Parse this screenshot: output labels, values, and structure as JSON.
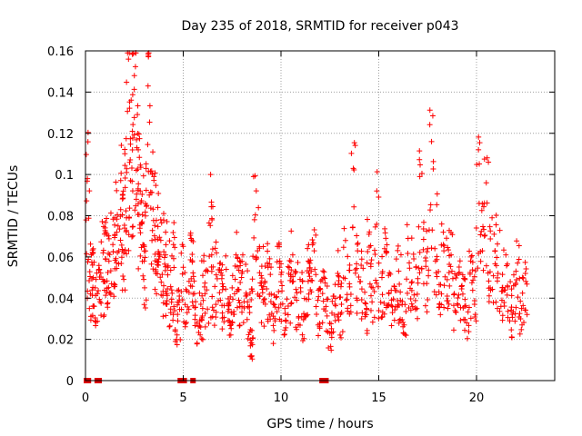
{
  "chart_data": {
    "type": "scatter",
    "title": "Day 235 of 2018, SRMTID for receiver p043",
    "xlabel": "GPS time / hours",
    "ylabel": "SRMTID / TECUs",
    "xlim": [
      0,
      24
    ],
    "ylim": [
      0,
      0.16
    ],
    "xticks": [
      0,
      5,
      10,
      15,
      20
    ],
    "xtick_labels": [
      "0",
      "5",
      "10",
      "15",
      "20"
    ],
    "yticks": [
      0,
      0.02,
      0.04,
      0.06,
      0.08,
      0.1,
      0.12,
      0.14,
      0.16
    ],
    "ytick_labels": [
      "0",
      "0.02",
      "0.04",
      "0.06",
      "0.08",
      "0.1",
      "0.12",
      "0.14",
      "0.16"
    ],
    "grid": true,
    "marker": "+",
    "series_color": "#ff0000",
    "zero_markers_color": "#dd0000",
    "zero_markers_x": [
      0.05,
      0.15,
      0.6,
      0.7,
      4.85,
      4.95,
      5.05,
      5.5,
      12.1,
      12.2,
      12.3
    ],
    "series": [
      {
        "name": "SRMTID",
        "x": [
          0.1,
          0.2,
          0.3,
          0.4,
          0.5,
          0.7,
          0.9,
          1.0,
          1.1,
          1.2,
          1.4,
          1.5,
          1.6,
          1.8,
          1.9,
          2.0,
          2.1,
          2.2,
          2.3,
          2.4,
          2.5,
          2.6,
          2.7,
          2.8,
          2.9,
          3.0,
          3.1,
          3.2,
          3.4,
          3.5,
          3.6,
          3.7,
          3.8,
          4.0,
          4.1,
          4.2,
          4.4,
          4.5,
          4.6,
          4.8,
          5.0,
          5.2,
          5.4,
          5.5,
          5.7,
          5.9,
          6.0,
          6.2,
          6.4,
          6.5,
          6.7,
          6.9,
          7.0,
          7.2,
          7.4,
          7.5,
          7.7,
          7.9,
          8.0,
          8.2,
          8.4,
          8.5,
          8.6,
          8.8,
          9.0,
          9.1,
          9.3,
          9.5,
          9.7,
          9.9,
          10.0,
          10.2,
          10.4,
          10.6,
          10.8,
          11.0,
          11.2,
          11.4,
          11.5,
          11.7,
          11.9,
          12.1,
          12.3,
          12.5,
          12.7,
          12.9,
          13.1,
          13.3,
          13.5,
          13.7,
          13.9,
          14.1,
          14.3,
          14.5,
          14.7,
          14.9,
          15.1,
          15.3,
          15.5,
          15.7,
          15.9,
          16.1,
          16.3,
          16.5,
          16.7,
          16.9,
          17.1,
          17.3,
          17.5,
          17.7,
          17.9,
          18.1,
          18.3,
          18.5,
          18.7,
          18.9,
          19.1,
          19.3,
          19.5,
          19.7,
          19.9,
          20.1,
          20.3,
          20.5,
          20.7,
          20.9,
          21.1,
          21.3,
          21.5,
          21.7,
          21.9,
          22.1,
          22.3,
          22.5
        ],
        "y": [
          0.098,
          0.035,
          0.061,
          0.05,
          0.045,
          0.054,
          0.062,
          0.048,
          0.071,
          0.058,
          0.066,
          0.079,
          0.072,
          0.083,
          0.09,
          0.074,
          0.101,
          0.156,
          0.097,
          0.121,
          0.148,
          0.088,
          0.112,
          0.092,
          0.077,
          0.058,
          0.103,
          0.143,
          0.068,
          0.099,
          0.052,
          0.084,
          0.061,
          0.046,
          0.072,
          0.055,
          0.038,
          0.066,
          0.019,
          0.041,
          0.055,
          0.033,
          0.069,
          0.042,
          0.028,
          0.037,
          0.051,
          0.044,
          0.1,
          0.031,
          0.062,
          0.039,
          0.047,
          0.054,
          0.028,
          0.045,
          0.061,
          0.036,
          0.052,
          0.041,
          0.033,
          0.012,
          0.099,
          0.063,
          0.046,
          0.038,
          0.057,
          0.042,
          0.029,
          0.066,
          0.048,
          0.035,
          0.052,
          0.061,
          0.039,
          0.045,
          0.031,
          0.058,
          0.044,
          0.063,
          0.027,
          0.049,
          0.036,
          0.023,
          0.041,
          0.052,
          0.033,
          0.068,
          0.047,
          0.103,
          0.039,
          0.056,
          0.031,
          0.071,
          0.045,
          0.092,
          0.038,
          0.064,
          0.051,
          0.033,
          0.059,
          0.043,
          0.027,
          0.069,
          0.048,
          0.055,
          0.099,
          0.047,
          0.064,
          0.116,
          0.058,
          0.037,
          0.072,
          0.049,
          0.061,
          0.034,
          0.052,
          0.042,
          0.028,
          0.058,
          0.037,
          0.112,
          0.063,
          0.096,
          0.045,
          0.071,
          0.052,
          0.039,
          0.061,
          0.029,
          0.046,
          0.057,
          0.035,
          0.052
        ]
      }
    ]
  }
}
